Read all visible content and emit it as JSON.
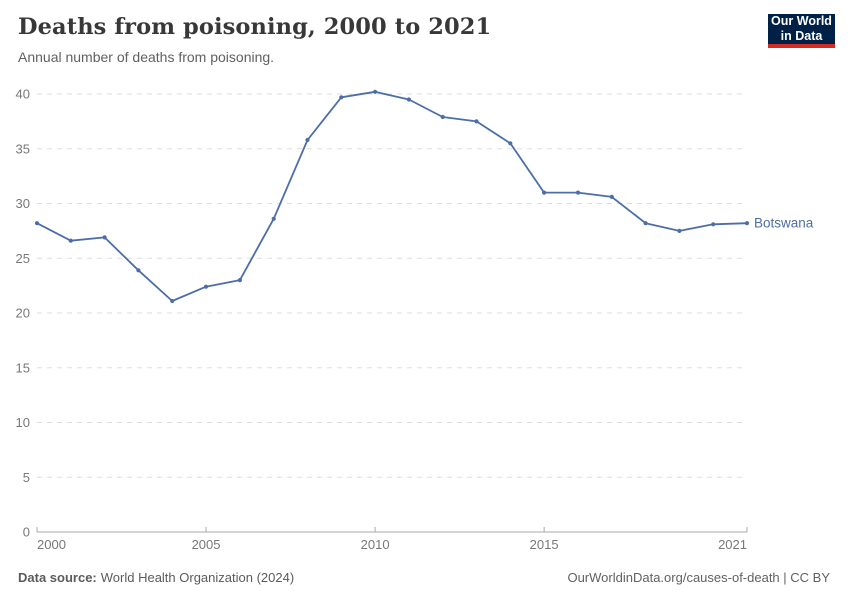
{
  "header": {
    "title": "Deaths from poisoning, 2000 to 2021",
    "subtitle": "Annual number of deaths from poisoning.",
    "logo_line1": "Our World",
    "logo_line2": "in Data"
  },
  "chart_data": {
    "type": "line",
    "title": "Deaths from poisoning, 2000 to 2021",
    "xlabel": "",
    "ylabel": "",
    "xlim": [
      2000,
      2021
    ],
    "ylim": [
      0,
      40
    ],
    "x_ticks": [
      2000,
      2005,
      2010,
      2015,
      2021
    ],
    "y_ticks": [
      0,
      5,
      10,
      15,
      20,
      25,
      30,
      35,
      40
    ],
    "grid": "horizontal-dashed",
    "legend_position": "end-of-line-label",
    "x": [
      2000,
      2001,
      2002,
      2003,
      2004,
      2005,
      2006,
      2007,
      2008,
      2009,
      2010,
      2011,
      2012,
      2013,
      2014,
      2015,
      2016,
      2017,
      2018,
      2019,
      2020,
      2021
    ],
    "series": [
      {
        "name": "Botswana",
        "color": "#4c6ea8",
        "values": [
          28.2,
          26.6,
          26.9,
          23.9,
          21.1,
          22.4,
          23.0,
          28.6,
          35.8,
          39.7,
          40.2,
          39.5,
          37.9,
          37.5,
          35.5,
          31.0,
          31.0,
          30.6,
          28.2,
          27.5,
          28.1,
          28.2
        ]
      }
    ]
  },
  "footer": {
    "source_label": "Data source:",
    "source_text": "World Health Organization (2024)",
    "credit": "OurWorldinData.org/causes-of-death | CC BY"
  },
  "colors": {
    "line": "#4c6ea8",
    "grid": "#dedede",
    "axis": "#a8a8a8",
    "tick_label": "#787878",
    "logo_bg": "#002147",
    "logo_accent": "#d42b22"
  }
}
